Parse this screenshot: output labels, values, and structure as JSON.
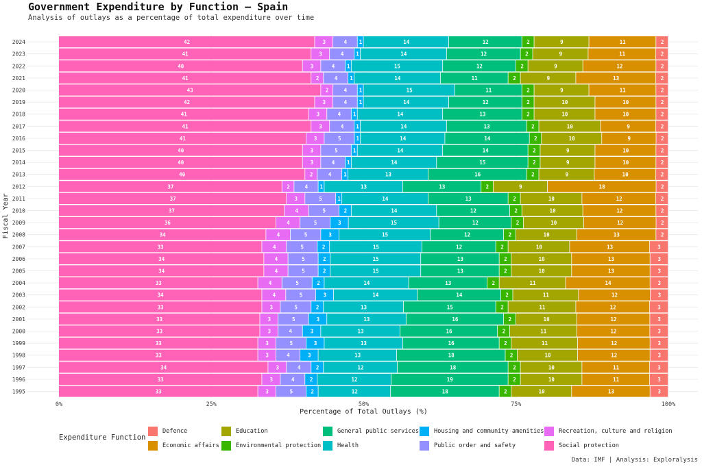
{
  "title": "Government Expenditure by Function — Spain",
  "subtitle": "Analysis of outlays as a percentage of total expenditure over time",
  "caption": "Data: IMF | Analysis: Exploralysis",
  "legend_title": "Expenditure Function",
  "chart_data": {
    "type": "bar",
    "orientation": "horizontal",
    "stacked": "percent",
    "xlabel": "Percentage of Total Outlays (%)",
    "ylabel": "Fiscal Year",
    "xlim": [
      0,
      100
    ],
    "x_ticks": [
      "0%",
      "25%",
      "50%",
      "75%",
      "100%"
    ],
    "grid": true,
    "legend_position": "bottom",
    "categories": [
      "2024",
      "2023",
      "2022",
      "2021",
      "2020",
      "2019",
      "2018",
      "2017",
      "2016",
      "2015",
      "2014",
      "2013",
      "2012",
      "2011",
      "2010",
      "2009",
      "2008",
      "2007",
      "2006",
      "2005",
      "2004",
      "2003",
      "2002",
      "2001",
      "2000",
      "1999",
      "1998",
      "1997",
      "1996",
      "1995"
    ],
    "series": [
      {
        "name": "Social protection",
        "color": "#FF63B8",
        "values": [
          42,
          41,
          40,
          41,
          43,
          42,
          41,
          41,
          41,
          40,
          40,
          40,
          37,
          37,
          37,
          36,
          34,
          33,
          34,
          34,
          33,
          34,
          33,
          33,
          33,
          33,
          33,
          34,
          33,
          33
        ]
      },
      {
        "name": "Recreation, culture and religion",
        "color": "#E76BF3",
        "values": [
          3,
          3,
          3,
          2,
          2,
          3,
          3,
          3,
          3,
          3,
          3,
          2,
          2,
          3,
          4,
          4,
          4,
          4,
          4,
          4,
          4,
          4,
          3,
          3,
          3,
          3,
          3,
          3,
          3,
          3
        ]
      },
      {
        "name": "Public order and safety",
        "color": "#9590FF",
        "values": [
          4,
          4,
          4,
          4,
          4,
          4,
          4,
          4,
          5,
          5,
          4,
          4,
          4,
          5,
          5,
          5,
          5,
          5,
          5,
          5,
          5,
          5,
          5,
          5,
          4,
          5,
          4,
          4,
          4,
          5
        ]
      },
      {
        "name": "Housing and community amenities",
        "color": "#00B0F6",
        "values": [
          1,
          1,
          1,
          1,
          1,
          1,
          1,
          1,
          1,
          1,
          1,
          1,
          1,
          1,
          2,
          3,
          3,
          2,
          2,
          2,
          2,
          3,
          2,
          3,
          3,
          3,
          3,
          2,
          2,
          2
        ]
      },
      {
        "name": "Health",
        "color": "#00BFC4",
        "values": [
          14,
          14,
          15,
          14,
          15,
          14,
          14,
          14,
          14,
          14,
          14,
          13,
          13,
          14,
          14,
          15,
          15,
          15,
          15,
          15,
          14,
          14,
          13,
          13,
          13,
          13,
          13,
          12,
          12,
          12
        ]
      },
      {
        "name": "General public services",
        "color": "#00BF7D",
        "values": [
          12,
          12,
          12,
          11,
          11,
          12,
          13,
          13,
          14,
          14,
          15,
          16,
          13,
          13,
          12,
          12,
          12,
          12,
          13,
          13,
          13,
          14,
          15,
          16,
          16,
          16,
          18,
          18,
          19,
          18
        ]
      },
      {
        "name": "Environmental protection",
        "color": "#39B600",
        "values": [
          2,
          2,
          2,
          2,
          2,
          2,
          2,
          2,
          2,
          2,
          2,
          2,
          2,
          2,
          2,
          2,
          2,
          2,
          2,
          2,
          2,
          2,
          2,
          2,
          2,
          2,
          2,
          2,
          2,
          2
        ]
      },
      {
        "name": "Education",
        "color": "#A3A500",
        "values": [
          9,
          9,
          9,
          9,
          9,
          10,
          10,
          10,
          10,
          9,
          9,
          9,
          9,
          10,
          10,
          10,
          10,
          10,
          10,
          10,
          11,
          11,
          11,
          10,
          11,
          11,
          10,
          10,
          10,
          10
        ]
      },
      {
        "name": "Economic affairs",
        "color": "#D89000",
        "values": [
          11,
          11,
          12,
          13,
          11,
          10,
          10,
          9,
          9,
          10,
          10,
          10,
          18,
          12,
          12,
          12,
          13,
          13,
          13,
          13,
          14,
          12,
          12,
          12,
          12,
          12,
          12,
          11,
          11,
          13
        ]
      },
      {
        "name": "Defence",
        "color": "#F8766D",
        "values": [
          2,
          2,
          2,
          2,
          2,
          2,
          2,
          2,
          2,
          2,
          2,
          2,
          2,
          2,
          2,
          2,
          2,
          3,
          3,
          3,
          3,
          3,
          3,
          3,
          3,
          3,
          3,
          3,
          3,
          3
        ]
      }
    ]
  },
  "legend": [
    {
      "label": "Defence",
      "color": "#F8766D"
    },
    {
      "label": "Economic affairs",
      "color": "#D89000"
    },
    {
      "label": "Education",
      "color": "#A3A500"
    },
    {
      "label": "Environmental protection",
      "color": "#39B600"
    },
    {
      "label": "General public services",
      "color": "#00BF7D"
    },
    {
      "label": "Health",
      "color": "#00BFC4"
    },
    {
      "label": "Housing and community amenities",
      "color": "#00B0F6"
    },
    {
      "label": "Public order and safety",
      "color": "#9590FF"
    },
    {
      "label": "Recreation, culture and religion",
      "color": "#E76BF3"
    },
    {
      "label": "Social protection",
      "color": "#FF63B8"
    }
  ]
}
